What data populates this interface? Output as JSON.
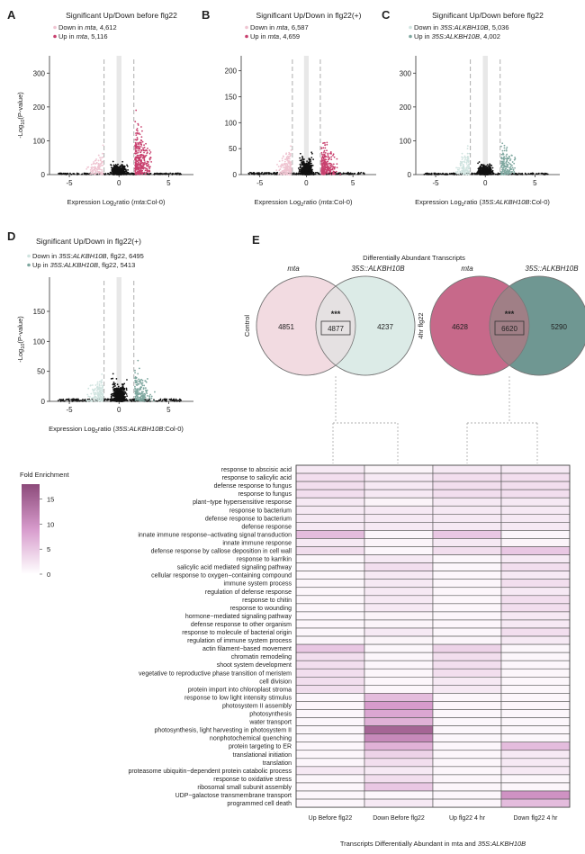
{
  "panels": [
    {
      "letter": "A",
      "title": "Significant Up/Down before flg22",
      "legend": [
        {
          "prefix": "Down in ",
          "italic": "mta",
          "suffix": ", 4,612",
          "color": "#efc4d1"
        },
        {
          "prefix": "Up in ",
          "italic": "mta",
          "suffix": ", 5,116",
          "color": "#c8406e"
        }
      ],
      "ylabel_pre": "-Log",
      "ylabel_sub": "10",
      "ylabel_post": "(P-value)",
      "xlabel_pre": "Expression Log",
      "xlabel_sub": "2",
      "xlabel_mid": "ratio (",
      "xlabel_italic": "mta",
      "xlabel_post": ":Col-0)",
      "xticks": [
        "-5",
        "0",
        "5"
      ],
      "yticks": [
        "0",
        "100",
        "200",
        "300"
      ]
    },
    {
      "letter": "B",
      "title": "Significant Up/Down in flg22(+)",
      "legend": [
        {
          "prefix": "Down in ",
          "italic": "mta",
          "suffix": ", 6,587",
          "color": "#efc4d1"
        },
        {
          "prefix": "Up in ",
          "italic": "mta",
          "suffix": ", 4,659",
          "color": "#c8406e"
        }
      ],
      "xlabel_pre": "Expression Log",
      "xlabel_sub": "2",
      "xlabel_mid": "ratio (",
      "xlabel_italic": "mta",
      "xlabel_post": ":Col-0)",
      "xticks": [
        "-5",
        "0",
        "5"
      ],
      "yticks": [
        "0",
        "50",
        "100",
        "150",
        "200"
      ]
    },
    {
      "letter": "C",
      "title": "Significant Up/Down before flg22",
      "legend": [
        {
          "prefix": "Down in ",
          "italic": "35S:ALKBH10B",
          "suffix": ", 5,036",
          "color": "#cfe3df"
        },
        {
          "prefix": "Up in ",
          "italic": "35S:ALKBH10B",
          "suffix": ", 4,002",
          "color": "#7ea79f"
        }
      ],
      "xlabel_pre": "Expression Log",
      "xlabel_sub": "2",
      "xlabel_mid": "ratio (",
      "xlabel_italic": "35S:ALKBH10B",
      "xlabel_post": ":Col-0)",
      "xticks": [
        "-5",
        "0",
        "5"
      ],
      "yticks": [
        "0",
        "100",
        "200",
        "300"
      ]
    },
    {
      "letter": "D",
      "title": "Significant Up/Down in flg22(+)",
      "legend": [
        {
          "prefix": "Down in ",
          "italic": "35S:ALKBH10B",
          "suffix": ", flg22, 6495",
          "color": "#cfe3df"
        },
        {
          "prefix": "Up in ",
          "italic": "35S:ALKBH10B",
          "suffix": ", flg22, 5413",
          "color": "#7ea79f"
        }
      ],
      "ylabel_pre": "-Log",
      "ylabel_sub": "10",
      "ylabel_post": "(P-value)",
      "xlabel_pre": "Expression Log",
      "xlabel_sub": "2",
      "xlabel_mid": "ratio (",
      "xlabel_italic": "35S:ALKBH10B",
      "xlabel_post": ":Col-0)",
      "xticks": [
        "-5",
        "0",
        "5"
      ],
      "yticks": [
        "0",
        "50",
        "100",
        "150"
      ]
    }
  ],
  "panel_e": {
    "letter": "E",
    "title": "Differentially Abundant Transcripts",
    "venn_control": {
      "row_label": "Control",
      "left_label": "mta",
      "right_label": "35S::ALKBH10B",
      "left_only": "4851",
      "overlap": "4877",
      "right_only": "4237",
      "stars": "***",
      "left_color": "#f2dbe1",
      "right_color": "#dcebe7"
    },
    "venn_flg22": {
      "row_label": "4hr flg22",
      "left_label": "mta",
      "right_label": "35S::ALKBH10B",
      "left_only": "4628",
      "overlap": "6620",
      "right_only": "5290",
      "stars": "***",
      "left_color": "#c7698a",
      "right_color": "#6f9792"
    }
  },
  "heatmap": {
    "legend_title": "Fold Enrichment",
    "legend_ticks": [
      "15",
      "10",
      "5",
      "0"
    ],
    "columns": [
      "Up Before flg22",
      "Down Before flg22",
      "Up flg22 4 hr",
      "Down flg22 4 hr"
    ],
    "xlabel_pre": "Transcripts Differentially Abundant in mta and ",
    "xlabel_italic": "35S:ALKBH10B",
    "rows": [
      "response to abscisic acid",
      "response to salicylic acid",
      "defense response to fungus",
      "response to fungus",
      "plant−type hypersensitive response",
      "response to bacterium",
      "defense response to bacterium",
      "defense response",
      "innate immune response−activating signal transduction",
      "innate immune response",
      "defense response by callose deposition in cell wall",
      "response to karrikin",
      "salicylic acid mediated signaling pathway",
      "cellular response to oxygen−containing compound",
      "immune system process",
      "regulation of defense response",
      "response to chitin",
      "response to wounding",
      "hormone−mediated signaling pathway",
      "defense response to other organism",
      "response to molecule of bacterial origin",
      "regulation of immune system process",
      "actin filament−based movement",
      "chromatin remodeling",
      "shoot system development",
      "vegetative to reproductive phase transition of meristem",
      "cell division",
      "protein import into chloroplast stroma",
      "response to low light intensity stimulus",
      "photosystem II assembly",
      "photosynthesis",
      "water transport",
      "photosynthesis, light harvesting in photosystem II",
      "nonphotochemical quenching",
      "protein targeting to ER",
      "translational initiation",
      "translation",
      "proteasome ubiquitin−dependent protein catabolic process",
      "response to oxidative stress",
      "ribosomal small subunit assembly",
      "UDP−galactose transmembrane transport",
      "programmed cell death"
    ],
    "values": [
      [
        2,
        1,
        2,
        2
      ],
      [
        3,
        2,
        3,
        3
      ],
      [
        3,
        2,
        3,
        3
      ],
      [
        3,
        2,
        3,
        3
      ],
      [
        2,
        1,
        2,
        2
      ],
      [
        2,
        2,
        2,
        2
      ],
      [
        2,
        2,
        2,
        2
      ],
      [
        2,
        2,
        2,
        2
      ],
      [
        6,
        0,
        5,
        0
      ],
      [
        2,
        1,
        2,
        1
      ],
      [
        3,
        0,
        3,
        5
      ],
      [
        0,
        2,
        0,
        2
      ],
      [
        0,
        3,
        0,
        3
      ],
      [
        0,
        2,
        0,
        2
      ],
      [
        0,
        2,
        0,
        3
      ],
      [
        0,
        2,
        0,
        2
      ],
      [
        0,
        2,
        0,
        3
      ],
      [
        0,
        2,
        0,
        3
      ],
      [
        0,
        1,
        0,
        2
      ],
      [
        0,
        1,
        0,
        2
      ],
      [
        0,
        2,
        0,
        3
      ],
      [
        0,
        1,
        0,
        2
      ],
      [
        5,
        0,
        4,
        0
      ],
      [
        3,
        0,
        3,
        0
      ],
      [
        3,
        0,
        3,
        0
      ],
      [
        3,
        0,
        3,
        0
      ],
      [
        3,
        0,
        2,
        0
      ],
      [
        3,
        0,
        2,
        0
      ],
      [
        0,
        6,
        0,
        0
      ],
      [
        0,
        9,
        0,
        0
      ],
      [
        0,
        8,
        0,
        0
      ],
      [
        0,
        7,
        0,
        0
      ],
      [
        0,
        15,
        0,
        0
      ],
      [
        0,
        11,
        0,
        0
      ],
      [
        0,
        7,
        0,
        6
      ],
      [
        0,
        4,
        0,
        2
      ],
      [
        0,
        3,
        0,
        2
      ],
      [
        2,
        2,
        0,
        2
      ],
      [
        0,
        3,
        0,
        0
      ],
      [
        0,
        5,
        0,
        0
      ],
      [
        0,
        0,
        0,
        10
      ],
      [
        0,
        2,
        0,
        6
      ]
    ],
    "color_low": "#ffffff",
    "color_high": "#8c4a7a",
    "max_value": 18
  }
}
